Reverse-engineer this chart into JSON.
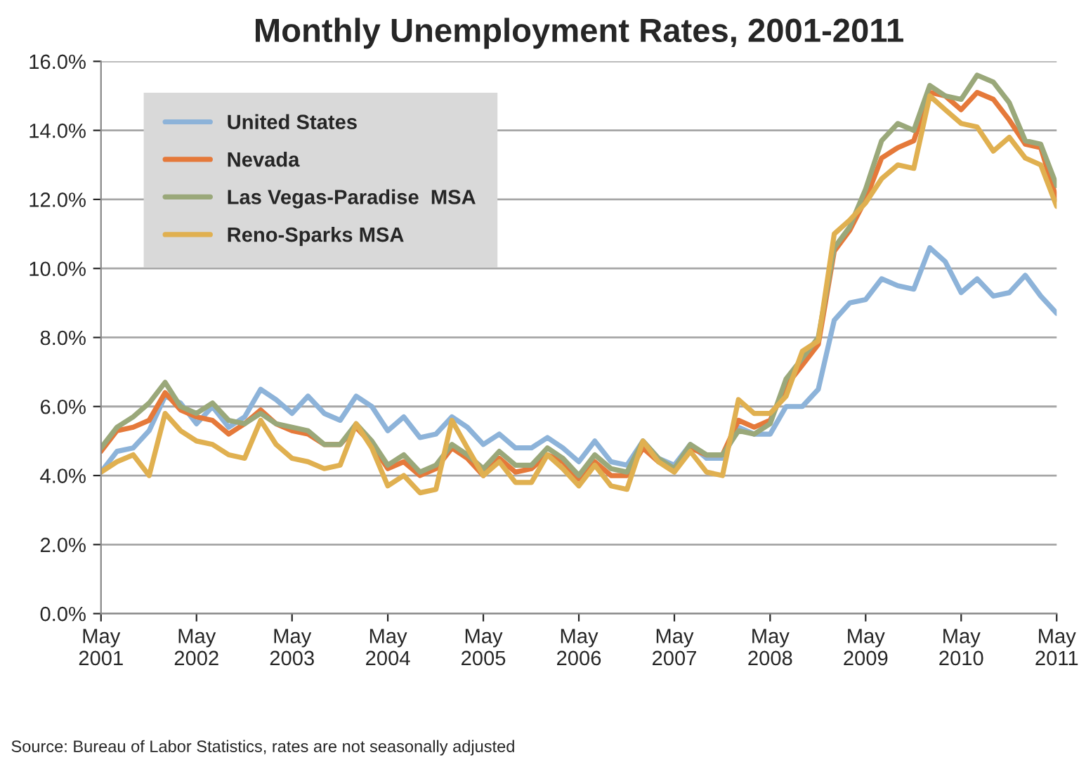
{
  "chart_data": {
    "type": "line",
    "title": "Monthly Unemployment Rates, 2001-2011",
    "x": [
      "2001-05",
      "2001-07",
      "2001-09",
      "2001-11",
      "2002-01",
      "2002-03",
      "2002-05",
      "2002-07",
      "2002-09",
      "2002-11",
      "2003-01",
      "2003-03",
      "2003-05",
      "2003-07",
      "2003-09",
      "2003-11",
      "2004-01",
      "2004-03",
      "2004-05",
      "2004-07",
      "2004-09",
      "2004-11",
      "2005-01",
      "2005-03",
      "2005-05",
      "2005-07",
      "2005-09",
      "2005-11",
      "2006-01",
      "2006-03",
      "2006-05",
      "2006-07",
      "2006-09",
      "2006-11",
      "2007-01",
      "2007-03",
      "2007-05",
      "2007-07",
      "2007-09",
      "2007-11",
      "2008-01",
      "2008-03",
      "2008-05",
      "2008-07",
      "2008-09",
      "2008-11",
      "2009-01",
      "2009-03",
      "2009-05",
      "2009-07",
      "2009-09",
      "2009-11",
      "2010-01",
      "2010-03",
      "2010-05",
      "2010-07",
      "2010-09",
      "2010-11",
      "2011-01",
      "2011-03",
      "2011-05"
    ],
    "series": [
      {
        "name": "United States",
        "color": "#8db3d9",
        "values": [
          4.1,
          4.7,
          4.8,
          5.3,
          6.3,
          6.1,
          5.5,
          6.0,
          5.4,
          5.7,
          6.5,
          6.2,
          5.8,
          6.3,
          5.8,
          5.6,
          6.3,
          6.0,
          5.3,
          5.7,
          5.1,
          5.2,
          5.7,
          5.4,
          4.9,
          5.2,
          4.8,
          4.8,
          5.1,
          4.8,
          4.4,
          5.0,
          4.4,
          4.3,
          5.0,
          4.5,
          4.3,
          4.9,
          4.5,
          4.5,
          5.4,
          5.2,
          5.2,
          6.0,
          6.0,
          6.5,
          8.5,
          9.0,
          9.1,
          9.7,
          9.5,
          9.4,
          10.6,
          10.2,
          9.3,
          9.7,
          9.2,
          9.3,
          9.8,
          9.2,
          8.7
        ]
      },
      {
        "name": "Nevada",
        "color": "#e5793a",
        "values": [
          4.7,
          5.3,
          5.4,
          5.6,
          6.4,
          5.9,
          5.7,
          5.6,
          5.2,
          5.5,
          5.9,
          5.5,
          5.3,
          5.2,
          4.9,
          4.9,
          5.4,
          4.9,
          4.2,
          4.4,
          4.0,
          4.2,
          4.8,
          4.5,
          4.0,
          4.5,
          4.1,
          4.2,
          4.6,
          4.4,
          3.9,
          4.4,
          4.0,
          4.0,
          4.8,
          4.4,
          4.2,
          4.8,
          4.6,
          4.6,
          5.6,
          5.4,
          5.6,
          6.6,
          7.2,
          7.8,
          10.5,
          11.1,
          12.0,
          13.2,
          13.5,
          13.7,
          15.1,
          15.0,
          14.6,
          15.1,
          14.9,
          14.3,
          13.6,
          13.5,
          12.0
        ]
      },
      {
        "name": "Las Vegas-Paradise  MSA",
        "color": "#9aa87a",
        "values": [
          4.8,
          5.4,
          5.7,
          6.1,
          6.7,
          6.0,
          5.8,
          6.1,
          5.6,
          5.5,
          5.8,
          5.5,
          5.4,
          5.3,
          4.9,
          4.9,
          5.5,
          5.0,
          4.3,
          4.6,
          4.1,
          4.3,
          4.9,
          4.6,
          4.2,
          4.7,
          4.3,
          4.3,
          4.8,
          4.5,
          4.0,
          4.6,
          4.2,
          4.1,
          5.0,
          4.5,
          4.2,
          4.9,
          4.6,
          4.6,
          5.3,
          5.2,
          5.5,
          6.8,
          7.4,
          8.0,
          10.6,
          11.2,
          12.3,
          13.7,
          14.2,
          14.0,
          15.3,
          15.0,
          14.9,
          15.6,
          15.4,
          14.8,
          13.7,
          13.6,
          12.4
        ]
      },
      {
        "name": "Reno-Sparks MSA",
        "color": "#e0b050",
        "values": [
          4.1,
          4.4,
          4.6,
          4.0,
          5.8,
          5.3,
          5.0,
          4.9,
          4.6,
          4.5,
          5.6,
          4.9,
          4.5,
          4.4,
          4.2,
          4.3,
          5.5,
          4.8,
          3.7,
          4.0,
          3.5,
          3.6,
          5.6,
          4.8,
          4.0,
          4.4,
          3.8,
          3.8,
          4.6,
          4.2,
          3.7,
          4.3,
          3.7,
          3.6,
          5.0,
          4.4,
          4.1,
          4.7,
          4.1,
          4.0,
          6.2,
          5.8,
          5.8,
          6.3,
          7.6,
          7.9,
          11.0,
          11.4,
          11.9,
          12.6,
          13.0,
          12.9,
          15.0,
          14.6,
          14.2,
          14.1,
          13.4,
          13.8,
          13.2,
          13.0,
          11.8
        ]
      }
    ],
    "xlim": [
      "2001-05",
      "2011-05"
    ],
    "xticks": [
      {
        "value": "2001-05",
        "label": "May\n2001"
      },
      {
        "value": "2002-05",
        "label": "May\n2002"
      },
      {
        "value": "2003-05",
        "label": "May\n2003"
      },
      {
        "value": "2004-05",
        "label": "May\n2004"
      },
      {
        "value": "2005-05",
        "label": "May\n2005"
      },
      {
        "value": "2006-05",
        "label": "May\n2006"
      },
      {
        "value": "2007-05",
        "label": "May\n2007"
      },
      {
        "value": "2008-05",
        "label": "May\n2008"
      },
      {
        "value": "2009-05",
        "label": "May\n2009"
      },
      {
        "value": "2010-05",
        "label": "May\n2010"
      },
      {
        "value": "2011-05",
        "label": "May\n2011"
      }
    ],
    "ylim": [
      0,
      16
    ],
    "yticks": [
      {
        "value": 0,
        "label": "0.0%"
      },
      {
        "value": 2,
        "label": "2.0%"
      },
      {
        "value": 4,
        "label": "4.0%"
      },
      {
        "value": 6,
        "label": "6.0%"
      },
      {
        "value": 8,
        "label": "8.0%"
      },
      {
        "value": 10,
        "label": "10.0%"
      },
      {
        "value": 12,
        "label": "12.0%"
      },
      {
        "value": 14,
        "label": "14.0%"
      },
      {
        "value": 16,
        "label": "16.0%"
      }
    ],
    "grid": "y",
    "legend": "top left",
    "marker": "none",
    "line_style": "solid",
    "annotations": [
      "Source: Bureau of Labor Statistics, rates are not seasonally adjusted"
    ]
  }
}
